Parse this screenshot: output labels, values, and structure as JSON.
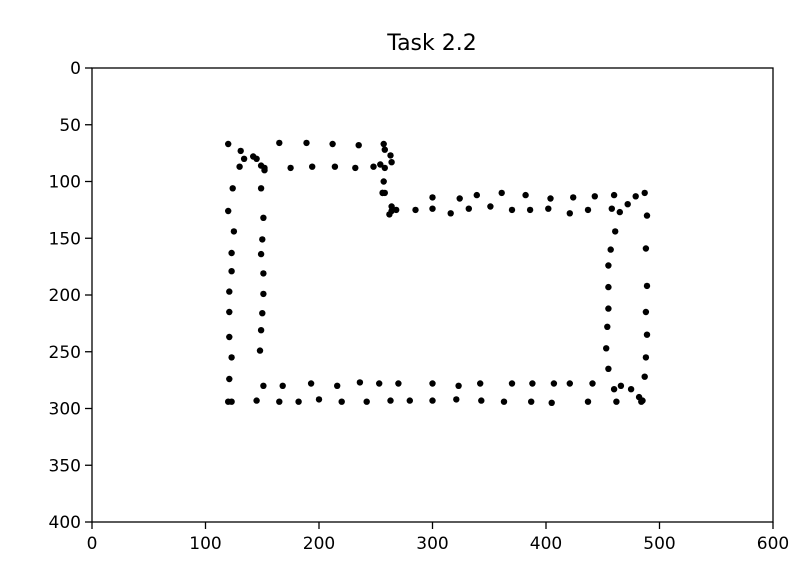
{
  "chart_data": {
    "type": "scatter",
    "title": "Task 2.2",
    "xlabel": "",
    "ylabel": "",
    "xlim": [
      0,
      600
    ],
    "ylim": [
      400,
      0
    ],
    "y_inverted": true,
    "grid": false,
    "legend": "none",
    "marker_color": "#000000",
    "x_ticks": [
      0,
      100,
      200,
      300,
      400,
      500,
      600
    ],
    "y_ticks": [
      0,
      50,
      100,
      150,
      200,
      250,
      300,
      350,
      400
    ],
    "series": [
      {
        "x": [
          120,
          131,
          142,
          165,
          189,
          212,
          235,
          257,
          258,
          263,
          264,
          257,
          258,
          264,
          262,
          300,
          324,
          339,
          361,
          382,
          404,
          424,
          443,
          460,
          487,
          489,
          488,
          489,
          488,
          489,
          488,
          487,
          484,
          462,
          437,
          405,
          387,
          363,
          343,
          321,
          300,
          280,
          263,
          242,
          220,
          200,
          182,
          165,
          145,
          123,
          120,
          121,
          123,
          121,
          121,
          121,
          123,
          123,
          125,
          120,
          124,
          130,
          134,
          145,
          149,
          152,
          149,
          151,
          150,
          149,
          151,
          151,
          150,
          149,
          148,
          151,
          168,
          193,
          216,
          236,
          253,
          270,
          300,
          323,
          342,
          370,
          388,
          407,
          421,
          441,
          466,
          475,
          482,
          485,
          460,
          455,
          453,
          454,
          455,
          455,
          455,
          457,
          461,
          465,
          472,
          479,
          458,
          437,
          421,
          402,
          386,
          370,
          351,
          332,
          316,
          300,
          285,
          268,
          264,
          256,
          256,
          258,
          254,
          248,
          232,
          214,
          194,
          175,
          152
        ],
        "y": [
          67,
          73,
          78,
          66,
          66,
          67,
          68,
          67,
          72,
          77,
          83,
          100,
          110,
          126,
          129,
          114,
          115,
          112,
          110,
          112,
          115,
          114,
          113,
          112,
          110,
          130,
          159,
          192,
          215,
          235,
          255,
          272,
          294,
          294,
          294,
          295,
          294,
          294,
          293,
          292,
          293,
          293,
          293,
          294,
          294,
          292,
          294,
          294,
          293,
          294,
          294,
          274,
          255,
          237,
          215,
          197,
          179,
          163,
          144,
          126,
          106,
          87,
          80,
          80,
          86,
          90,
          106,
          132,
          151,
          164,
          181,
          199,
          216,
          231,
          249,
          280,
          280,
          278,
          280,
          277,
          278,
          278,
          278,
          280,
          278,
          278,
          278,
          278,
          278,
          278,
          280,
          283,
          290,
          293,
          283,
          265,
          247,
          228,
          212,
          193,
          174,
          160,
          144,
          127,
          120,
          113,
          124,
          125,
          128,
          124,
          125,
          125,
          122,
          124,
          128,
          124,
          125,
          125,
          122,
          110,
          110,
          88,
          85,
          87,
          88,
          87,
          87,
          88,
          88
        ]
      }
    ]
  }
}
